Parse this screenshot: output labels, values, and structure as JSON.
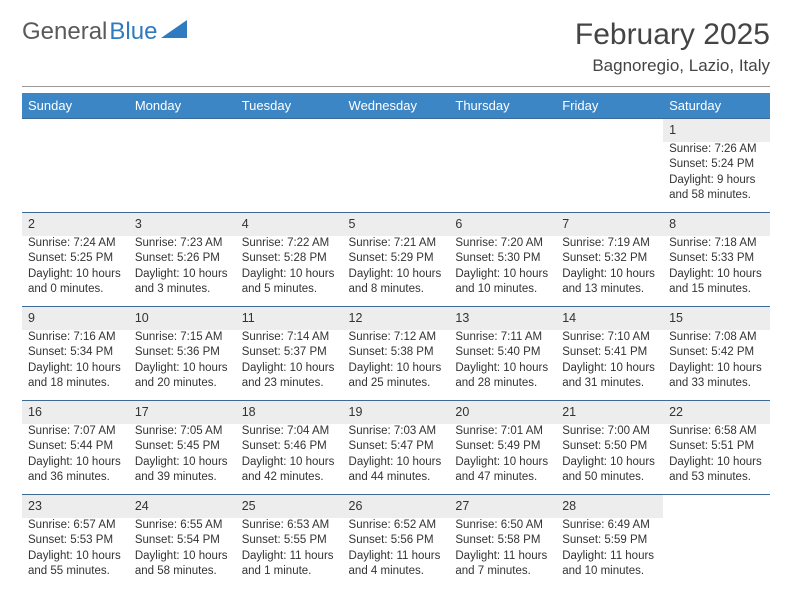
{
  "logo": {
    "part1": "General",
    "part2": "Blue"
  },
  "title": "February 2025",
  "location": "Bagnoregio, Lazio, Italy",
  "colors": {
    "header_bg": "#3d86c6",
    "header_text": "#ffffff",
    "daynum_bg": "#ededed",
    "row_divider": "#3d6a94",
    "logo_blue": "#2f7bbf",
    "text": "#333333"
  },
  "weekdays": [
    "Sunday",
    "Monday",
    "Tuesday",
    "Wednesday",
    "Thursday",
    "Friday",
    "Saturday"
  ],
  "weeks": [
    [
      null,
      null,
      null,
      null,
      null,
      null,
      {
        "n": "1",
        "sunrise": "Sunrise: 7:26 AM",
        "sunset": "Sunset: 5:24 PM",
        "day1": "Daylight: 9 hours",
        "day2": "and 58 minutes."
      }
    ],
    [
      {
        "n": "2",
        "sunrise": "Sunrise: 7:24 AM",
        "sunset": "Sunset: 5:25 PM",
        "day1": "Daylight: 10 hours",
        "day2": "and 0 minutes."
      },
      {
        "n": "3",
        "sunrise": "Sunrise: 7:23 AM",
        "sunset": "Sunset: 5:26 PM",
        "day1": "Daylight: 10 hours",
        "day2": "and 3 minutes."
      },
      {
        "n": "4",
        "sunrise": "Sunrise: 7:22 AM",
        "sunset": "Sunset: 5:28 PM",
        "day1": "Daylight: 10 hours",
        "day2": "and 5 minutes."
      },
      {
        "n": "5",
        "sunrise": "Sunrise: 7:21 AM",
        "sunset": "Sunset: 5:29 PM",
        "day1": "Daylight: 10 hours",
        "day2": "and 8 minutes."
      },
      {
        "n": "6",
        "sunrise": "Sunrise: 7:20 AM",
        "sunset": "Sunset: 5:30 PM",
        "day1": "Daylight: 10 hours",
        "day2": "and 10 minutes."
      },
      {
        "n": "7",
        "sunrise": "Sunrise: 7:19 AM",
        "sunset": "Sunset: 5:32 PM",
        "day1": "Daylight: 10 hours",
        "day2": "and 13 minutes."
      },
      {
        "n": "8",
        "sunrise": "Sunrise: 7:18 AM",
        "sunset": "Sunset: 5:33 PM",
        "day1": "Daylight: 10 hours",
        "day2": "and 15 minutes."
      }
    ],
    [
      {
        "n": "9",
        "sunrise": "Sunrise: 7:16 AM",
        "sunset": "Sunset: 5:34 PM",
        "day1": "Daylight: 10 hours",
        "day2": "and 18 minutes."
      },
      {
        "n": "10",
        "sunrise": "Sunrise: 7:15 AM",
        "sunset": "Sunset: 5:36 PM",
        "day1": "Daylight: 10 hours",
        "day2": "and 20 minutes."
      },
      {
        "n": "11",
        "sunrise": "Sunrise: 7:14 AM",
        "sunset": "Sunset: 5:37 PM",
        "day1": "Daylight: 10 hours",
        "day2": "and 23 minutes."
      },
      {
        "n": "12",
        "sunrise": "Sunrise: 7:12 AM",
        "sunset": "Sunset: 5:38 PM",
        "day1": "Daylight: 10 hours",
        "day2": "and 25 minutes."
      },
      {
        "n": "13",
        "sunrise": "Sunrise: 7:11 AM",
        "sunset": "Sunset: 5:40 PM",
        "day1": "Daylight: 10 hours",
        "day2": "and 28 minutes."
      },
      {
        "n": "14",
        "sunrise": "Sunrise: 7:10 AM",
        "sunset": "Sunset: 5:41 PM",
        "day1": "Daylight: 10 hours",
        "day2": "and 31 minutes."
      },
      {
        "n": "15",
        "sunrise": "Sunrise: 7:08 AM",
        "sunset": "Sunset: 5:42 PM",
        "day1": "Daylight: 10 hours",
        "day2": "and 33 minutes."
      }
    ],
    [
      {
        "n": "16",
        "sunrise": "Sunrise: 7:07 AM",
        "sunset": "Sunset: 5:44 PM",
        "day1": "Daylight: 10 hours",
        "day2": "and 36 minutes."
      },
      {
        "n": "17",
        "sunrise": "Sunrise: 7:05 AM",
        "sunset": "Sunset: 5:45 PM",
        "day1": "Daylight: 10 hours",
        "day2": "and 39 minutes."
      },
      {
        "n": "18",
        "sunrise": "Sunrise: 7:04 AM",
        "sunset": "Sunset: 5:46 PM",
        "day1": "Daylight: 10 hours",
        "day2": "and 42 minutes."
      },
      {
        "n": "19",
        "sunrise": "Sunrise: 7:03 AM",
        "sunset": "Sunset: 5:47 PM",
        "day1": "Daylight: 10 hours",
        "day2": "and 44 minutes."
      },
      {
        "n": "20",
        "sunrise": "Sunrise: 7:01 AM",
        "sunset": "Sunset: 5:49 PM",
        "day1": "Daylight: 10 hours",
        "day2": "and 47 minutes."
      },
      {
        "n": "21",
        "sunrise": "Sunrise: 7:00 AM",
        "sunset": "Sunset: 5:50 PM",
        "day1": "Daylight: 10 hours",
        "day2": "and 50 minutes."
      },
      {
        "n": "22",
        "sunrise": "Sunrise: 6:58 AM",
        "sunset": "Sunset: 5:51 PM",
        "day1": "Daylight: 10 hours",
        "day2": "and 53 minutes."
      }
    ],
    [
      {
        "n": "23",
        "sunrise": "Sunrise: 6:57 AM",
        "sunset": "Sunset: 5:53 PM",
        "day1": "Daylight: 10 hours",
        "day2": "and 55 minutes."
      },
      {
        "n": "24",
        "sunrise": "Sunrise: 6:55 AM",
        "sunset": "Sunset: 5:54 PM",
        "day1": "Daylight: 10 hours",
        "day2": "and 58 minutes."
      },
      {
        "n": "25",
        "sunrise": "Sunrise: 6:53 AM",
        "sunset": "Sunset: 5:55 PM",
        "day1": "Daylight: 11 hours",
        "day2": "and 1 minute."
      },
      {
        "n": "26",
        "sunrise": "Sunrise: 6:52 AM",
        "sunset": "Sunset: 5:56 PM",
        "day1": "Daylight: 11 hours",
        "day2": "and 4 minutes."
      },
      {
        "n": "27",
        "sunrise": "Sunrise: 6:50 AM",
        "sunset": "Sunset: 5:58 PM",
        "day1": "Daylight: 11 hours",
        "day2": "and 7 minutes."
      },
      {
        "n": "28",
        "sunrise": "Sunrise: 6:49 AM",
        "sunset": "Sunset: 5:59 PM",
        "day1": "Daylight: 11 hours",
        "day2": "and 10 minutes."
      },
      null
    ]
  ]
}
